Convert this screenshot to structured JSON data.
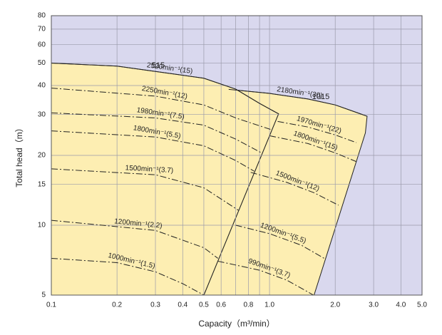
{
  "chart_data": {
    "type": "line",
    "xlabel": "Capacity（m³/min）",
    "ylabel": "Total head（m）",
    "log_x": true,
    "log_y": true,
    "grid": true,
    "xlim": [
      0.1,
      5
    ],
    "ylim": [
      5,
      80
    ],
    "xticks": [
      0.1,
      0.2,
      0.3,
      0.4,
      0.5,
      0.6,
      {
        "value": 0.7,
        "label": null
      },
      0.8,
      {
        "value": 0.9,
        "label": null
      },
      {
        "value": 1,
        "label": "1.0"
      },
      {
        "value": 2,
        "label": "2.0"
      },
      {
        "value": 3,
        "label": "3.0"
      },
      {
        "value": 4,
        "label": "4.0"
      },
      {
        "value": 5,
        "label": "5.0"
      }
    ],
    "yticks": [
      5,
      10,
      15,
      20,
      30,
      40,
      50,
      60,
      70,
      80
    ],
    "background": "#d9d8ee",
    "annotations": [
      "515",
      "1015"
    ],
    "regions": [
      {
        "color": "#fdeeb2",
        "x": [
          0.65,
          1.0,
          1.5,
          2.0,
          2.8,
          2.75,
          1.6,
          0.5,
          1.1
        ],
        "y": [
          38.5,
          37,
          35,
          33,
          29.5,
          25,
          5,
          5,
          30.2
        ]
      },
      {
        "color": "#fdeeb2",
        "x": [
          0.1,
          0.1,
          0.2,
          0.3,
          0.5,
          0.7,
          0.9,
          1.1,
          0.5
        ],
        "y": [
          5,
          50,
          48.5,
          46,
          43,
          38.6,
          33.5,
          30.2,
          5
        ]
      }
    ],
    "series": [
      {
        "name": "2520min⁻¹(15)",
        "color": "#222222",
        "style": "solid",
        "x": [
          0.1,
          0.2,
          0.3,
          0.5,
          0.7,
          0.9,
          1.1
        ],
        "y": [
          50,
          48.5,
          46,
          43,
          38.6,
          33.5,
          30.2
        ]
      },
      {
        "name": "2250min⁻¹(12)",
        "color": "#222222",
        "style": "dashdot",
        "x": [
          0.1,
          0.3,
          0.5,
          0.7,
          1.02
        ],
        "y": [
          39,
          36,
          33,
          29,
          25.8
        ]
      },
      {
        "name": "1980min⁻¹(7.5)",
        "color": "#222222",
        "style": "dashdot",
        "x": [
          0.1,
          0.3,
          0.5,
          0.7,
          0.92
        ],
        "y": [
          30.5,
          29,
          27,
          23.5,
          20.5
        ]
      },
      {
        "name": "1800min⁻¹(5.5)",
        "color": "#222222",
        "style": "dashdot",
        "x": [
          0.1,
          0.3,
          0.5,
          0.7,
          0.85
        ],
        "y": [
          25.5,
          24,
          22,
          19,
          17.1
        ]
      },
      {
        "name": "1500min⁻¹(3.7)",
        "color": "#222222",
        "style": "dashdot",
        "x": [
          0.1,
          0.3,
          0.5,
          0.72
        ],
        "y": [
          17.5,
          16.5,
          14.5,
          11.6
        ]
      },
      {
        "name": "1200min⁻¹(2.2)",
        "color": "#222222",
        "style": "dashdot",
        "x": [
          0.1,
          0.3,
          0.5,
          0.58
        ],
        "y": [
          10.5,
          9.5,
          8,
          7.2
        ]
      },
      {
        "name": "1000min⁻¹(1.5)",
        "color": "#222222",
        "style": "dashdot",
        "x": [
          0.1,
          0.2,
          0.3,
          0.4,
          0.5
        ],
        "y": [
          7.2,
          6.9,
          6.3,
          5.6,
          5
        ]
      },
      {
        "name": "2180min⁻¹(30)",
        "color": "#222222",
        "style": "solid",
        "x": [
          0.65,
          1.0,
          1.5,
          2.0,
          2.8
        ],
        "y": [
          38.5,
          37,
          35,
          33,
          29.5
        ]
      },
      {
        "name": "1970min⁻¹(22)",
        "color": "#222222",
        "style": "dashdot",
        "x": [
          1.09,
          1.5,
          2.0,
          2.5
        ],
        "y": [
          28,
          26.5,
          24.5,
          22.7
        ]
      },
      {
        "name": "1800min⁻¹(15)",
        "color": "#222222",
        "style": "dashdot",
        "x": [
          1.0,
          1.5,
          2.0,
          2.5
        ],
        "y": [
          24.3,
          22.5,
          20.5,
          18.8
        ]
      },
      {
        "name": "1500min⁻¹(12)",
        "color": "#222222",
        "style": "dashdot",
        "x": [
          0.82,
          1.2,
          1.6,
          2.07
        ],
        "y": [
          16.9,
          15.3,
          13.8,
          12.2
        ]
      },
      {
        "name": "1200min⁻¹(5.5)",
        "color": "#222222",
        "style": "dashdot",
        "x": [
          0.7,
          1.0,
          1.4,
          1.78
        ],
        "y": [
          10,
          9.2,
          8.2,
          7.2
        ]
      },
      {
        "name": "990min⁻¹(3.7)",
        "color": "#222222",
        "style": "dashdot",
        "x": [
          0.58,
          0.9,
          1.2,
          1.59
        ],
        "y": [
          7,
          6.4,
          5.8,
          5
        ]
      }
    ]
  }
}
